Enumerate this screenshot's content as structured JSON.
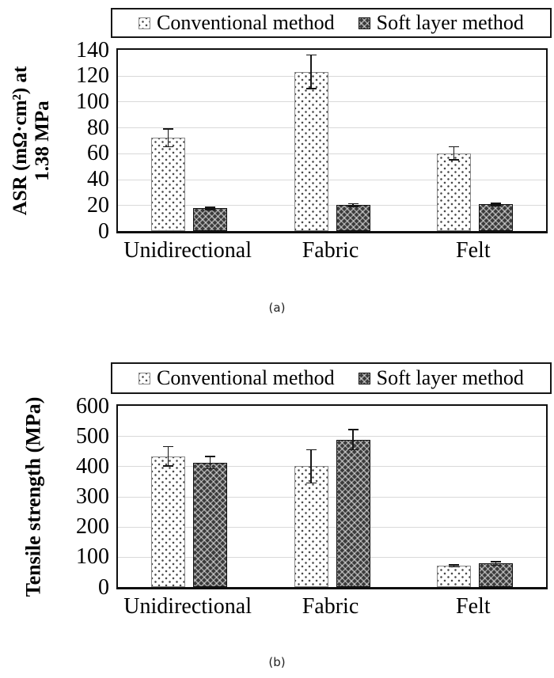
{
  "colors": {
    "grid": "#d9d9d9",
    "axis": "#0f0f0f",
    "conventional_fill": "#ffffff",
    "conventional_dot": "#4a4a4a",
    "conventional_border": "#8a8a8a",
    "soft_fill": "#3b3b3b",
    "soft_border": "#101010"
  },
  "chart_data": [
    {
      "id": "a",
      "type": "bar",
      "title": "",
      "caption": "(a)",
      "ylabel": "ASR (mΩ·cm²) at 1.38 MPa",
      "ylabel_lines": [
        "ASR (mΩ·cm²) at",
        "1.38 MPa"
      ],
      "xlabel": "",
      "categories": [
        "Unidirectional",
        "Fabric",
        "Felt"
      ],
      "series": [
        {
          "name": "Conventional method",
          "pattern": "light-dot-pattern",
          "values": [
            72,
            123,
            60
          ],
          "errors": [
            7,
            13,
            5
          ]
        },
        {
          "name": "Soft layer method",
          "pattern": "dark-weave-pattern",
          "values": [
            17.5,
            20,
            20.5
          ],
          "errors": [
            1,
            1,
            1
          ]
        }
      ],
      "ylim": [
        0,
        140
      ],
      "ytick_step": 20,
      "grid": true,
      "legend_position": "top"
    },
    {
      "id": "b",
      "type": "bar",
      "title": "",
      "caption": "(b)",
      "ylabel": "Tensile strength (MPa)",
      "ylabel_lines": [
        "Tensile strength (MPa)"
      ],
      "xlabel": "",
      "categories": [
        "Unidirectional",
        "Fabric",
        "Felt"
      ],
      "series": [
        {
          "name": "Conventional method",
          "pattern": "light-dot-pattern",
          "values": [
            433,
            400,
            70
          ],
          "errors": [
            32,
            55,
            3
          ]
        },
        {
          "name": "Soft layer method",
          "pattern": "dark-weave-pattern",
          "values": [
            412,
            488,
            78
          ],
          "errors": [
            20,
            33,
            6
          ]
        }
      ],
      "ylim": [
        0,
        600
      ],
      "ytick_step": 100,
      "grid": true,
      "legend_position": "top"
    }
  ]
}
